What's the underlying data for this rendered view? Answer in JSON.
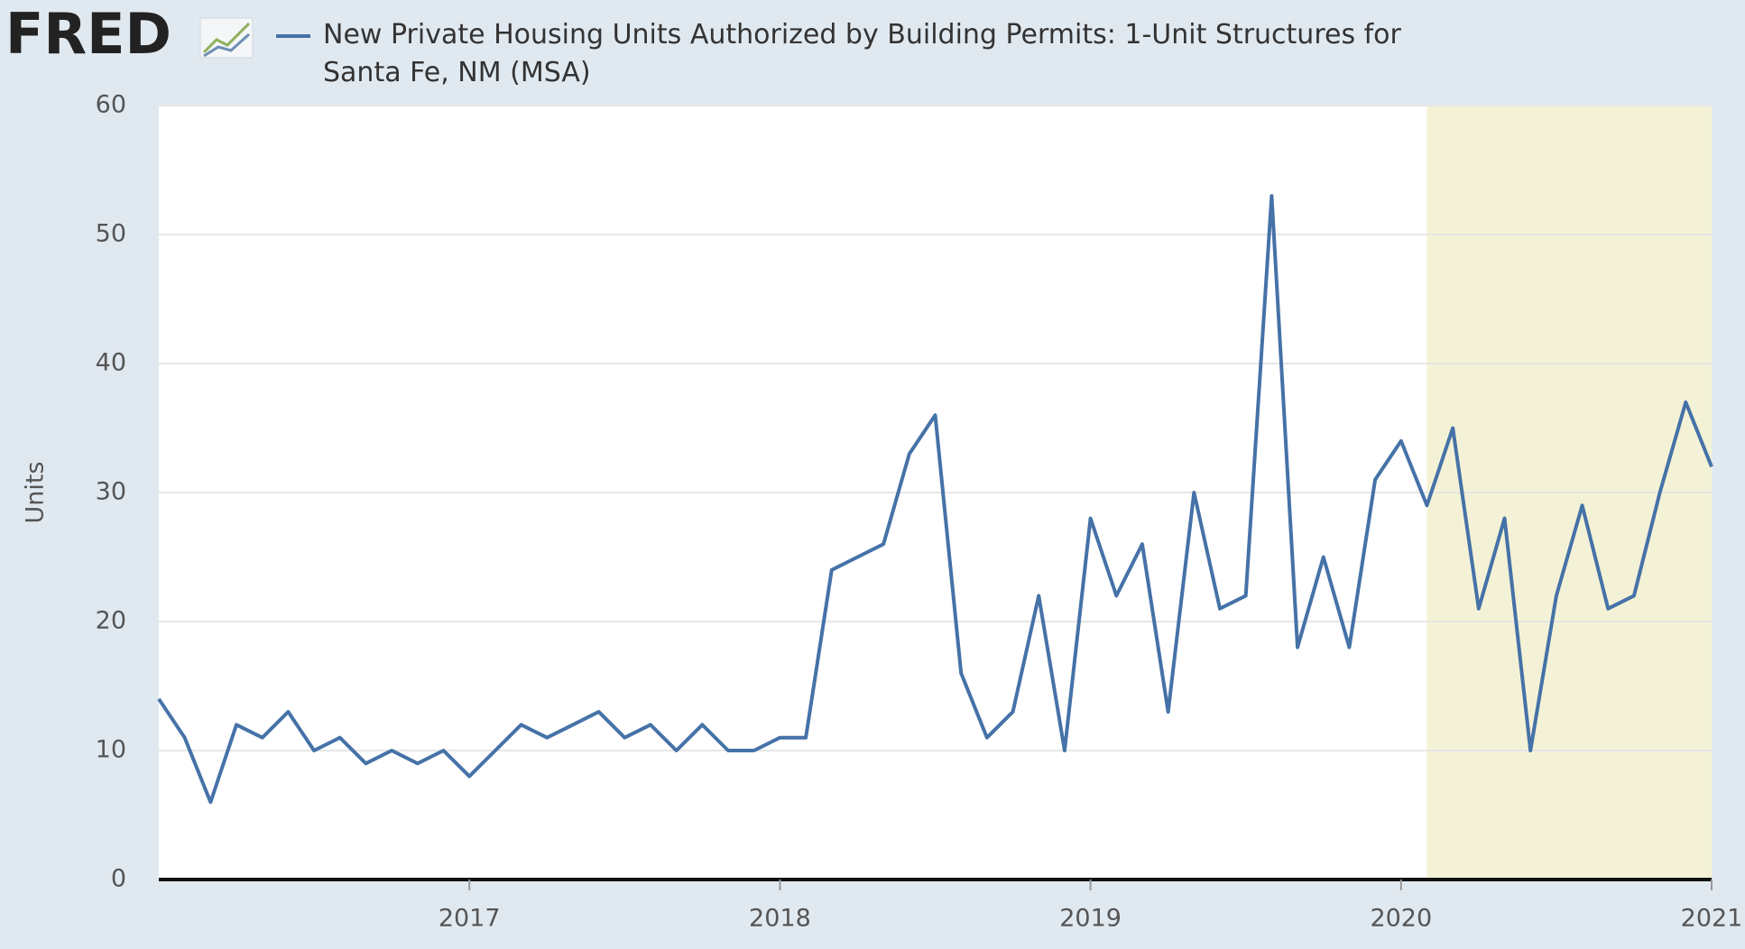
{
  "logo": "FRED",
  "chart_data": {
    "type": "line",
    "categories": [
      null,
      null,
      null,
      null,
      null,
      null,
      null,
      null,
      null,
      null,
      null,
      null,
      "2017",
      null,
      null,
      null,
      null,
      null,
      null,
      null,
      null,
      null,
      null,
      null,
      "2018",
      null,
      null,
      null,
      null,
      null,
      null,
      null,
      null,
      null,
      null,
      null,
      "2019",
      null,
      null,
      null,
      null,
      null,
      null,
      null,
      null,
      null,
      null,
      null,
      "2020",
      null,
      null,
      null,
      null,
      null,
      null,
      null,
      null,
      null,
      null,
      null,
      "2021"
    ],
    "series": [
      {
        "name": "New Private Housing Units Authorized by Building Permits: 1-Unit Structures for Santa Fe, NM (MSA)",
        "color": "#4572a7",
        "values": [
          14,
          11,
          6,
          12,
          11,
          13,
          10,
          11,
          9,
          10,
          9,
          10,
          8,
          10,
          12,
          11,
          12,
          13,
          11,
          12,
          10,
          12,
          10,
          10,
          11,
          11,
          24,
          25,
          26,
          33,
          36,
          16,
          11,
          13,
          22,
          10,
          28,
          22,
          26,
          13,
          30,
          21,
          22,
          53,
          18,
          25,
          18,
          31,
          34,
          29,
          35,
          21,
          28,
          10,
          22,
          29,
          21,
          22,
          30,
          37,
          32
        ]
      }
    ],
    "y_label": "Units",
    "ylim": [
      0,
      60
    ],
    "yticks": [
      0,
      10,
      20,
      30,
      40,
      50,
      60
    ],
    "grid": true,
    "recession_shading": {
      "from": 49,
      "to": 60,
      "color": "#f4f2d6"
    }
  }
}
